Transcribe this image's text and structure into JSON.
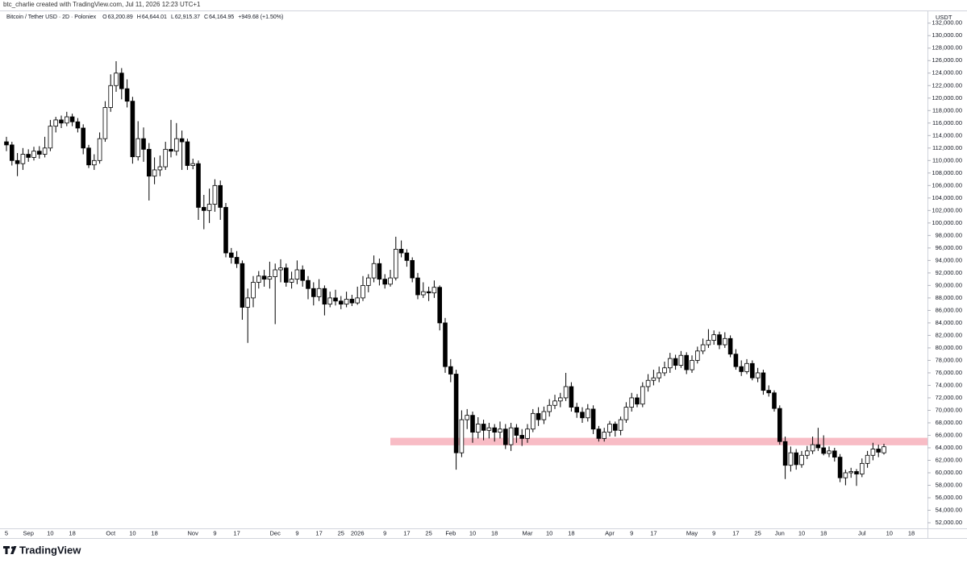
{
  "header": "btc_charlie created with TradingView.com, Jul 11, 2026 12:23 UTC+1",
  "footer": "TradingView",
  "chart_data": {
    "type": "candlestick",
    "legend": {
      "symbol": "Bitcoin / Tether USD · 2D · Poloniex",
      "items": [
        {
          "key": "O",
          "value": "63,200.89"
        },
        {
          "key": "H",
          "value": "64,644.01"
        },
        {
          "key": "L",
          "value": "62,915.37"
        },
        {
          "key": "C",
          "value": "64,164.95"
        }
      ],
      "change": "+949.68 (+1.50%)"
    },
    "currency": "USDT",
    "up_color": "#ffffff",
    "down_color": "#000000",
    "wick_color": "#000000",
    "categories": [
      "5",
      null,
      null,
      null,
      "Sep",
      null,
      null,
      null,
      "10",
      null,
      null,
      null,
      "18",
      null,
      null,
      null,
      null,
      null,
      null,
      "Oct",
      null,
      null,
      null,
      "10",
      null,
      null,
      null,
      "18",
      null,
      null,
      null,
      null,
      null,
      null,
      "Nov",
      null,
      null,
      null,
      "9",
      null,
      null,
      null,
      "17",
      null,
      null,
      null,
      null,
      null,
      null,
      "Dec",
      null,
      null,
      null,
      "9",
      null,
      null,
      null,
      "17",
      null,
      null,
      null,
      "25",
      null,
      null,
      "2026",
      null,
      null,
      null,
      null,
      "9",
      null,
      null,
      null,
      "17",
      null,
      null,
      null,
      "25",
      null,
      null,
      null,
      "Feb",
      null,
      null,
      null,
      "10",
      null,
      null,
      null,
      "18",
      null,
      null,
      null,
      null,
      null,
      "Mar",
      null,
      null,
      null,
      "10",
      null,
      null,
      null,
      "18",
      null,
      null,
      null,
      null,
      null,
      null,
      "Apr",
      null,
      null,
      null,
      "9",
      null,
      null,
      null,
      "17",
      null,
      null,
      null,
      null,
      null,
      null,
      "May",
      null,
      null,
      null,
      "9",
      null,
      null,
      null,
      "17",
      null,
      null,
      null,
      "25",
      null,
      null,
      null,
      "Jun",
      null,
      null,
      null,
      "10",
      null,
      null,
      null,
      "18",
      null,
      null,
      null,
      null,
      null,
      null,
      "Jul",
      null,
      null,
      null,
      null,
      "10",
      null,
      null,
      null,
      "18"
    ],
    "candles": [
      [
        113000,
        113800,
        111500,
        112500
      ],
      [
        112500,
        113000,
        109200,
        110000
      ],
      [
        110000,
        111200,
        107500,
        109500
      ],
      [
        109500,
        112000,
        108500,
        111000
      ],
      [
        111000,
        111800,
        109800,
        110500
      ],
      [
        110500,
        112200,
        110000,
        111500
      ],
      [
        111500,
        112300,
        110300,
        111000
      ],
      [
        111000,
        113800,
        110500,
        112000
      ],
      [
        112000,
        116500,
        111500,
        115500
      ],
      [
        115500,
        117000,
        114500,
        116500
      ],
      [
        116500,
        117200,
        115200,
        116000
      ],
      [
        116000,
        117800,
        115500,
        117000
      ],
      [
        117000,
        117500,
        115500,
        116200
      ],
      [
        116200,
        116800,
        114500,
        115200
      ],
      [
        115200,
        115800,
        111000,
        112000
      ],
      [
        112000,
        112500,
        108800,
        109300
      ],
      [
        109300,
        111000,
        108500,
        110000
      ],
      [
        110000,
        114500,
        109500,
        113500
      ],
      [
        113500,
        119500,
        113000,
        118500
      ],
      [
        118500,
        123800,
        117800,
        122000
      ],
      [
        122000,
        125900,
        121000,
        124000
      ],
      [
        124000,
        124800,
        119800,
        121500
      ],
      [
        121500,
        123000,
        118500,
        119500
      ],
      [
        119500,
        120200,
        109500,
        110600
      ],
      [
        110600,
        116300,
        110000,
        113500
      ],
      [
        113500,
        115300,
        109800,
        111800
      ],
      [
        111800,
        112800,
        103600,
        107500
      ],
      [
        107500,
        110500,
        106200,
        108500
      ],
      [
        108500,
        110800,
        107500,
        109000
      ],
      [
        109000,
        113000,
        108500,
        111800
      ],
      [
        111800,
        116500,
        110500,
        111500
      ],
      [
        111500,
        116000,
        110800,
        113500
      ],
      [
        113500,
        114800,
        108500,
        113000
      ],
      [
        113000,
        113500,
        108500,
        109200
      ],
      [
        109200,
        110300,
        108600,
        109500
      ],
      [
        109500,
        110000,
        100500,
        102500
      ],
      [
        102500,
        104500,
        99000,
        102000
      ],
      [
        102000,
        105500,
        100000,
        103000
      ],
      [
        103000,
        107000,
        101800,
        106000
      ],
      [
        106000,
        106800,
        100500,
        102500
      ],
      [
        102500,
        103200,
        94500,
        95200
      ],
      [
        95200,
        96000,
        93500,
        94500
      ],
      [
        94500,
        95500,
        92800,
        93500
      ],
      [
        93500,
        94000,
        84500,
        86500
      ],
      [
        86500,
        89500,
        80800,
        88000
      ],
      [
        88000,
        91500,
        86500,
        90500
      ],
      [
        90500,
        92300,
        89500,
        91500
      ],
      [
        91500,
        92500,
        89800,
        91000
      ],
      [
        91000,
        93800,
        89500,
        91400
      ],
      [
        91400,
        93500,
        83800,
        92500
      ],
      [
        92500,
        94200,
        90500,
        92800
      ],
      [
        92800,
        93500,
        89800,
        90500
      ],
      [
        90500,
        92200,
        89500,
        91000
      ],
      [
        91000,
        94000,
        90200,
        92500
      ],
      [
        92500,
        93200,
        89800,
        90800
      ],
      [
        90800,
        91500,
        87800,
        89500
      ],
      [
        89500,
        90500,
        86800,
        88200
      ],
      [
        88200,
        91000,
        87500,
        89500
      ],
      [
        89500,
        90000,
        85200,
        87000
      ],
      [
        87000,
        89000,
        86500,
        88000
      ],
      [
        88000,
        89300,
        86800,
        87500
      ],
      [
        87500,
        88300,
        86200,
        87000
      ],
      [
        87000,
        89000,
        86500,
        87800
      ],
      [
        87800,
        88500,
        86700,
        87200
      ],
      [
        87200,
        89800,
        86900,
        88000
      ],
      [
        88000,
        91500,
        87500,
        90000
      ],
      [
        90000,
        91800,
        88900,
        91200
      ],
      [
        91200,
        94800,
        90500,
        93500
      ],
      [
        93500,
        94300,
        90000,
        91000
      ],
      [
        91000,
        91800,
        89500,
        90200
      ],
      [
        90200,
        92500,
        89800,
        91200
      ],
      [
        91200,
        97800,
        90800,
        95800
      ],
      [
        95800,
        97200,
        94500,
        95200
      ],
      [
        95200,
        95800,
        93000,
        94000
      ],
      [
        94000,
        94500,
        90500,
        91200
      ],
      [
        91200,
        92000,
        87800,
        88500
      ],
      [
        88500,
        90500,
        88000,
        89000
      ],
      [
        89000,
        89800,
        87500,
        88800
      ],
      [
        88800,
        90800,
        88000,
        89700
      ],
      [
        89700,
        90000,
        82800,
        84000
      ],
      [
        84000,
        84800,
        76000,
        77000
      ],
      [
        77000,
        78200,
        74500,
        75800
      ],
      [
        75800,
        76500,
        60500,
        63200
      ],
      [
        63200,
        70000,
        62500,
        68500
      ],
      [
        68500,
        70200,
        67000,
        69200
      ],
      [
        69200,
        69800,
        64800,
        66500
      ],
      [
        66500,
        68900,
        65500,
        67800
      ],
      [
        67800,
        68500,
        65200,
        66800
      ],
      [
        66800,
        68000,
        65500,
        67200
      ],
      [
        67200,
        67800,
        65000,
        66500
      ],
      [
        66500,
        68200,
        65500,
        67000
      ],
      [
        67000,
        67800,
        63800,
        64500
      ],
      [
        64500,
        68000,
        63500,
        67200
      ],
      [
        67200,
        67800,
        64800,
        66000
      ],
      [
        66000,
        67000,
        64300,
        65500
      ],
      [
        65500,
        67800,
        64800,
        67000
      ],
      [
        67000,
        70200,
        66500,
        69500
      ],
      [
        69500,
        70500,
        67500,
        68500
      ],
      [
        68500,
        70600,
        67800,
        69800
      ],
      [
        69800,
        71800,
        69000,
        70800
      ],
      [
        70800,
        72500,
        70200,
        71500
      ],
      [
        71500,
        72800,
        70500,
        72000
      ],
      [
        72000,
        76000,
        71500,
        73800
      ],
      [
        73800,
        74500,
        69800,
        70500
      ],
      [
        70500,
        71200,
        68800,
        69700
      ],
      [
        69700,
        70500,
        68000,
        68800
      ],
      [
        68800,
        71000,
        68200,
        70200
      ],
      [
        70200,
        70800,
        66200,
        67000
      ],
      [
        67000,
        67500,
        65000,
        65500
      ],
      [
        65500,
        67200,
        65000,
        66500
      ],
      [
        66500,
        68300,
        65800,
        67800
      ],
      [
        67800,
        68200,
        65800,
        66800
      ],
      [
        66800,
        69000,
        66000,
        68500
      ],
      [
        68500,
        71300,
        68000,
        70500
      ],
      [
        70500,
        72800,
        69800,
        72000
      ],
      [
        72000,
        72600,
        70500,
        71000
      ],
      [
        71000,
        74500,
        70500,
        73800
      ],
      [
        73800,
        75800,
        73000,
        74800
      ],
      [
        74800,
        76500,
        74000,
        75200
      ],
      [
        75200,
        77000,
        74500,
        76000
      ],
      [
        76000,
        77800,
        75500,
        76800
      ],
      [
        76800,
        79200,
        76000,
        78300
      ],
      [
        78300,
        78900,
        76500,
        77200
      ],
      [
        77200,
        79500,
        76800,
        78800
      ],
      [
        78800,
        79300,
        75800,
        76500
      ],
      [
        76500,
        78800,
        76000,
        78000
      ],
      [
        78000,
        80200,
        77500,
        79500
      ],
      [
        79500,
        81500,
        79000,
        80500
      ],
      [
        80500,
        83000,
        80000,
        81200
      ],
      [
        81200,
        82800,
        80500,
        82100
      ],
      [
        82100,
        82600,
        79800,
        80500
      ],
      [
        80500,
        82500,
        80000,
        81500
      ],
      [
        81500,
        82000,
        78500,
        79000
      ],
      [
        79000,
        79800,
        76500,
        77000
      ],
      [
        77000,
        78000,
        75500,
        76200
      ],
      [
        76200,
        78200,
        75800,
        77500
      ],
      [
        77500,
        78000,
        74800,
        75200
      ],
      [
        75200,
        76800,
        74500,
        76000
      ],
      [
        76000,
        76500,
        72500,
        73200
      ],
      [
        73200,
        74000,
        72200,
        72800
      ],
      [
        72800,
        73200,
        69800,
        70300
      ],
      [
        70300,
        70800,
        64500,
        65000
      ],
      [
        65000,
        65800,
        59000,
        61200
      ],
      [
        61200,
        64200,
        60200,
        63200
      ],
      [
        63200,
        63800,
        60500,
        61300
      ],
      [
        61300,
        63500,
        60800,
        62800
      ],
      [
        62800,
        64300,
        62200,
        63500
      ],
      [
        63500,
        65800,
        63000,
        64500
      ],
      [
        64500,
        67200,
        63500,
        64000
      ],
      [
        64000,
        66000,
        62800,
        63100
      ],
      [
        63100,
        64200,
        62500,
        63500
      ],
      [
        63500,
        64000,
        61800,
        62500
      ],
      [
        62500,
        63000,
        58500,
        59200
      ],
      [
        59200,
        60500,
        58000,
        60000
      ],
      [
        60000,
        60800,
        59200,
        60200
      ],
      [
        60200,
        60600,
        57900,
        59800
      ],
      [
        59800,
        62300,
        59300,
        61500
      ],
      [
        61500,
        63500,
        60800,
        62800
      ],
      [
        62800,
        64800,
        62000,
        63800
      ],
      [
        63800,
        64500,
        62500,
        63300
      ],
      [
        63200.89,
        64644.01,
        62915.37,
        64164.95
      ],
      null,
      null,
      null,
      null,
      null
    ],
    "zone": {
      "low": 64400,
      "high": 65600,
      "start": 70,
      "color": "#f8bcc5"
    },
    "ylim": [
      51100,
      133900
    ],
    "yticks": [
      {
        "value": 52000,
        "label": "52,000.00"
      },
      {
        "value": 54000,
        "label": "54,000.00"
      },
      {
        "value": 56000,
        "label": "56,000.00"
      },
      {
        "value": 58000,
        "label": "58,000.00"
      },
      {
        "value": 60000,
        "label": "60,000.00"
      },
      {
        "value": 62000,
        "label": "62,000.00"
      },
      {
        "value": 64000,
        "label": "64,000.00"
      },
      {
        "value": 66000,
        "label": "66,000.00"
      },
      {
        "value": 68000,
        "label": "68,000.00"
      },
      {
        "value": 70000,
        "label": "70,000.00"
      },
      {
        "value": 72000,
        "label": "72,000.00"
      },
      {
        "value": 74000,
        "label": "74,000.00"
      },
      {
        "value": 76000,
        "label": "76,000.00"
      },
      {
        "value": 78000,
        "label": "78,000.00"
      },
      {
        "value": 80000,
        "label": "80,000.00"
      },
      {
        "value": 82000,
        "label": "82,000.00"
      },
      {
        "value": 84000,
        "label": "84,000.00"
      },
      {
        "value": 86000,
        "label": "86,000.00"
      },
      {
        "value": 88000,
        "label": "88,000.00"
      },
      {
        "value": 90000,
        "label": "90,000.00"
      },
      {
        "value": 92000,
        "label": "92,000.00"
      },
      {
        "value": 94000,
        "label": "94,000.00"
      },
      {
        "value": 96000,
        "label": "96,000.00"
      },
      {
        "value": 98000,
        "label": "98,000.00"
      },
      {
        "value": 100000,
        "label": "100,000.00"
      },
      {
        "value": 102000,
        "label": "102,000.00"
      },
      {
        "value": 104000,
        "label": "104,000.00"
      },
      {
        "value": 106000,
        "label": "106,000.00"
      },
      {
        "value": 108000,
        "label": "108,000.00"
      },
      {
        "value": 110000,
        "label": "110,000.00"
      },
      {
        "value": 112000,
        "label": "112,000.00"
      },
      {
        "value": 114000,
        "label": "114,000.00"
      },
      {
        "value": 116000,
        "label": "116,000.00"
      },
      {
        "value": 118000,
        "label": "118,000.00"
      },
      {
        "value": 120000,
        "label": "120,000.00"
      },
      {
        "value": 122000,
        "label": "122,000.00"
      },
      {
        "value": 124000,
        "label": "124,000.00"
      },
      {
        "value": 126000,
        "label": "126,000.00"
      },
      {
        "value": 128000,
        "label": "128,000.00"
      },
      {
        "value": 130000,
        "label": "130,000.00"
      },
      {
        "value": 132000,
        "label": "132,000.00"
      }
    ],
    "grid": false
  }
}
